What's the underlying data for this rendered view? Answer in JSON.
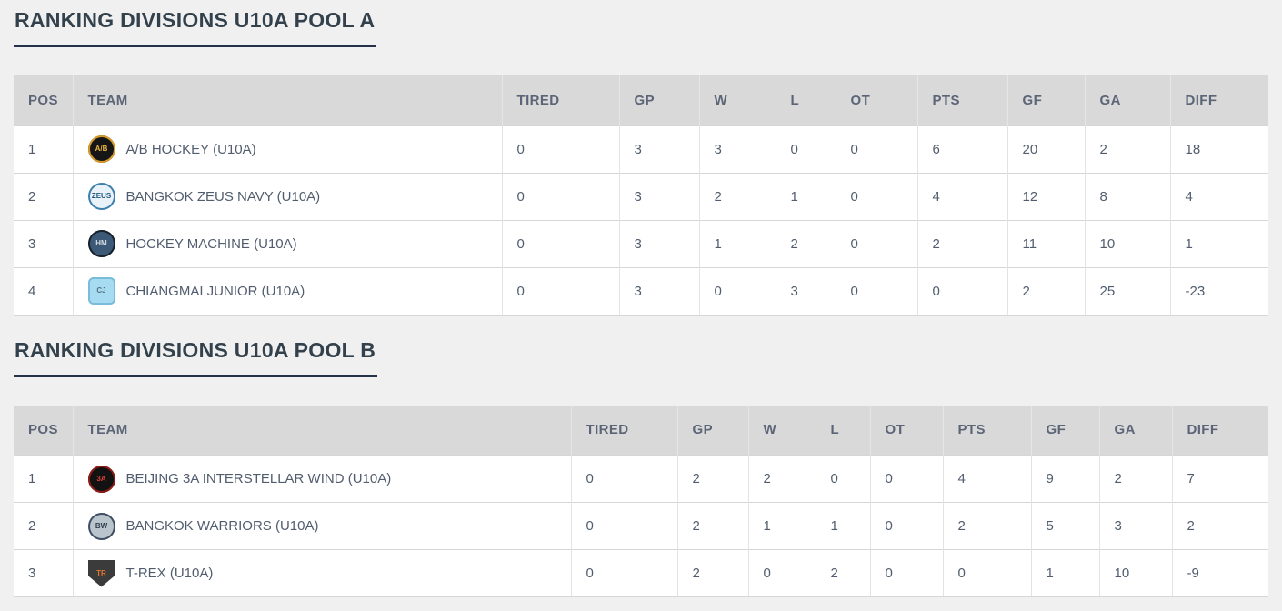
{
  "theme": {
    "page_bg": "#f0f0f1",
    "title_color": "#32414b",
    "underline_color": "#26324b",
    "header_bg": "#d9d9d9",
    "header_text": "#5b6577",
    "cell_text": "#515d6e"
  },
  "columns": [
    "POS",
    "TEAM",
    "TIRED",
    "GP",
    "W",
    "L",
    "OT",
    "PTS",
    "GF",
    "GA",
    "DIFF"
  ],
  "sections": [
    {
      "title": "RANKING DIVISIONS U10A POOL A",
      "rows": [
        {
          "pos": "1",
          "team": "A/B HOCKEY (U10A)",
          "tired": "0",
          "gp": "3",
          "w": "3",
          "l": "0",
          "ot": "0",
          "pts": "6",
          "gf": "20",
          "ga": "2",
          "diff": "18",
          "logo": {
            "shape": "circle",
            "bg": "#161616",
            "ring": "#d89b2b",
            "text": "A/B",
            "text_color": "#eab63c"
          }
        },
        {
          "pos": "2",
          "team": "BANGKOK ZEUS NAVY (U10A)",
          "tired": "0",
          "gp": "3",
          "w": "2",
          "l": "1",
          "ot": "0",
          "pts": "4",
          "gf": "12",
          "ga": "8",
          "diff": "4",
          "logo": {
            "shape": "circle",
            "bg": "#e9f2f8",
            "ring": "#3d7fae",
            "text": "ZEUS",
            "text_color": "#1f567e"
          }
        },
        {
          "pos": "3",
          "team": "HOCKEY MACHINE (U10A)",
          "tired": "0",
          "gp": "3",
          "w": "1",
          "l": "2",
          "ot": "0",
          "pts": "2",
          "gf": "11",
          "ga": "10",
          "diff": "1",
          "logo": {
            "shape": "circle",
            "bg": "#3c5a77",
            "ring": "#18222c",
            "text": "HM",
            "text_color": "#d5dde4"
          }
        },
        {
          "pos": "4",
          "team": "CHIANGMAI JUNIOR (U10A)",
          "tired": "0",
          "gp": "3",
          "w": "0",
          "l": "3",
          "ot": "0",
          "pts": "0",
          "gf": "2",
          "ga": "25",
          "diff": "-23",
          "logo": {
            "shape": "square",
            "bg": "#a7dbf2",
            "ring": "#79bcd8",
            "text": "CJ",
            "text_color": "#53717e"
          }
        }
      ]
    },
    {
      "title": "RANKING DIVISIONS U10A POOL B",
      "rows": [
        {
          "pos": "1",
          "team": "BEIJING 3A INTERSTELLAR WIND (U10A)",
          "tired": "0",
          "gp": "2",
          "w": "2",
          "l": "0",
          "ot": "0",
          "pts": "4",
          "gf": "9",
          "ga": "2",
          "diff": "7",
          "logo": {
            "shape": "circle",
            "bg": "#121212",
            "ring": "#8e1b15",
            "text": "3A",
            "text_color": "#e04338"
          }
        },
        {
          "pos": "2",
          "team": "BANGKOK WARRIORS (U10A)",
          "tired": "0",
          "gp": "2",
          "w": "1",
          "l": "1",
          "ot": "0",
          "pts": "2",
          "gf": "5",
          "ga": "3",
          "diff": "2",
          "logo": {
            "shape": "circle",
            "bg": "#b9c4cc",
            "ring": "#3f4f63",
            "text": "BW",
            "text_color": "#2f3c4c"
          }
        },
        {
          "pos": "3",
          "team": "T-REX (U10A)",
          "tired": "0",
          "gp": "2",
          "w": "0",
          "l": "2",
          "ot": "0",
          "pts": "0",
          "gf": "1",
          "ga": "10",
          "diff": "-9",
          "logo": {
            "shape": "shield",
            "bg": "#3b3b3b",
            "ring": "",
            "text": "TR",
            "text_color": "#e2762f"
          }
        }
      ]
    }
  ]
}
